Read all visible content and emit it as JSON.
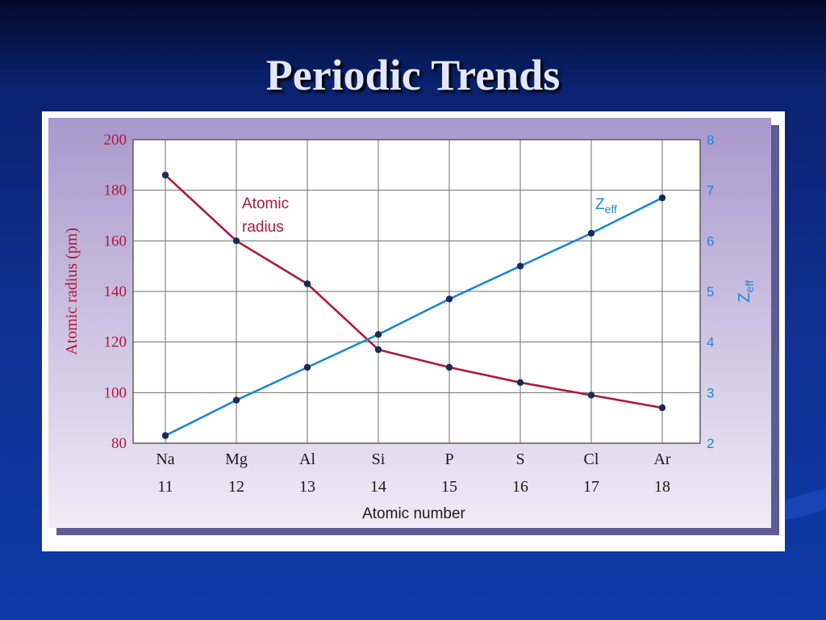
{
  "slide": {
    "title": "Periodic Trends"
  },
  "colors": {
    "radius_series": "#b0173a",
    "zeff_series": "#1d86d6",
    "point": "#1a2a5a",
    "panel_top": "#a898cc",
    "panel_bottom": "#f0ecf6",
    "grid": "#6e6e6e"
  },
  "chart_data": {
    "type": "line",
    "categories": [
      "Na",
      "Mg",
      "Al",
      "Si",
      "P",
      "S",
      "Cl",
      "Ar"
    ],
    "atomic_numbers": [
      "11",
      "12",
      "13",
      "14",
      "15",
      "16",
      "17",
      "18"
    ],
    "xlabel": "Atomic number",
    "ylabel_left": "Atomic radius (pm)",
    "ylabel_right": {
      "main": "Z",
      "sub": "eff"
    },
    "ylim_left": [
      80,
      200
    ],
    "ylim_right": [
      2,
      8
    ],
    "yticks_left": [
      80,
      100,
      120,
      140,
      160,
      180,
      200
    ],
    "yticks_right": [
      2,
      3,
      4,
      5,
      6,
      7,
      8
    ],
    "grid": true,
    "series": [
      {
        "label_lines": [
          "Atomic",
          "radius"
        ],
        "axis": "left",
        "values": [
          186,
          160,
          143,
          117,
          110,
          104,
          99,
          94
        ]
      },
      {
        "label": {
          "main": "Z",
          "sub": "eff"
        },
        "axis": "right",
        "values": [
          2.15,
          2.85,
          3.5,
          4.15,
          4.85,
          5.5,
          6.15,
          6.85
        ]
      }
    ]
  }
}
